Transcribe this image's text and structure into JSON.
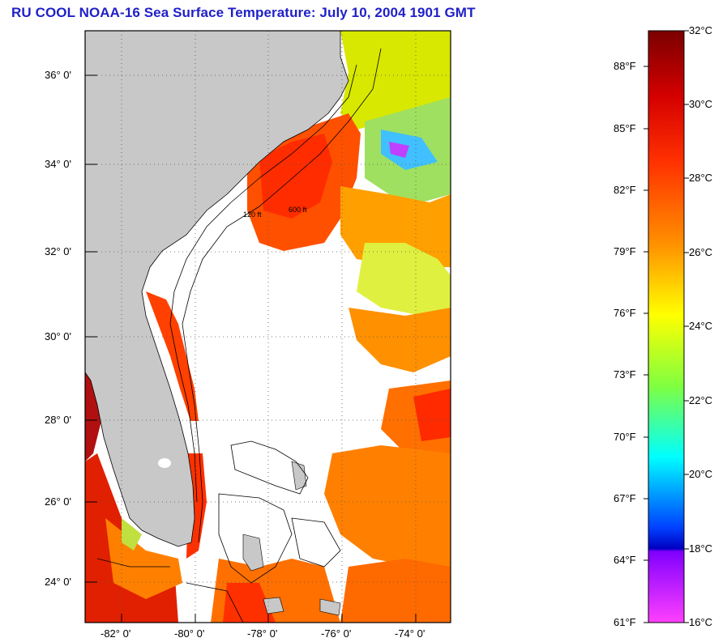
{
  "title": "RU COOL  NOAA-16  Sea Surface Temperature:  July 10, 2004 1901 GMT",
  "colors": {
    "land": "#c8c8c8",
    "title": "#1f1fc8",
    "no_data": "#ffffff"
  },
  "map": {
    "lon_range": [
      -83,
      -73
    ],
    "lat_range": [
      23,
      37
    ],
    "lat_labels": [
      "36° 0'",
      "34° 0'",
      "32° 0'",
      "30° 0'",
      "28° 0'",
      "26° 0'",
      "24° 0'"
    ],
    "lon_labels": [
      "-82° 0'",
      "-80° 0'",
      "-78° 0'",
      "-76° 0'",
      "-74° 0'"
    ],
    "contour_labels": [
      "600 ft",
      "120 ft"
    ]
  },
  "colorbar": {
    "celsius_labels": [
      "32°C",
      "30°C",
      "28°C",
      "26°C",
      "24°C",
      "22°C",
      "20°C",
      "18°C",
      "16°C"
    ],
    "fahrenheit_labels": [
      "88°F",
      "85°F",
      "82°F",
      "79°F",
      "76°F",
      "73°F",
      "70°F",
      "67°F",
      "64°F",
      "61°F"
    ]
  }
}
